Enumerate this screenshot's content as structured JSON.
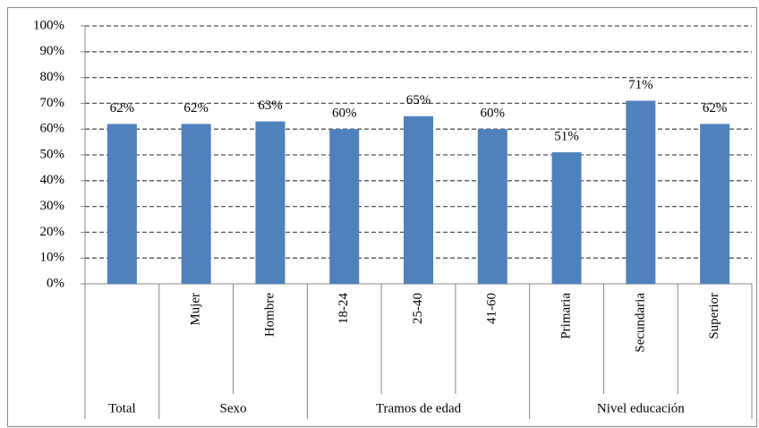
{
  "chart_data": {
    "type": "bar",
    "categories": [
      null,
      "Mujer",
      "Hombre",
      "18-24",
      "25-40",
      "41-60",
      "Primaria",
      "Secundaria",
      "Superior"
    ],
    "groups": [
      {
        "label": "Total",
        "size": 1
      },
      {
        "label": "Sexo",
        "size": 2
      },
      {
        "label": "Tramos de edad",
        "size": 3
      },
      {
        "label": "Nivel educación",
        "size": 3
      }
    ],
    "values": [
      62,
      62,
      63,
      60,
      65,
      60,
      51,
      71,
      62
    ],
    "value_labels": [
      "62%",
      "62%",
      "63%",
      "60%",
      "65%",
      "60%",
      "51%",
      "71%",
      "62%"
    ],
    "color": "#4f81bd",
    "ylim": [
      0,
      100
    ],
    "yticks": [
      {
        "value": 0,
        "label": "0%"
      },
      {
        "value": 10,
        "label": "10%"
      },
      {
        "value": 20,
        "label": "20%"
      },
      {
        "value": 30,
        "label": "30%"
      },
      {
        "value": 40,
        "label": "40%"
      },
      {
        "value": 50,
        "label": "50%"
      },
      {
        "value": 60,
        "label": "60%"
      },
      {
        "value": 70,
        "label": "70%"
      },
      {
        "value": 80,
        "label": "80%"
      },
      {
        "value": 90,
        "label": "90%"
      },
      {
        "value": 100,
        "label": "100%"
      }
    ],
    "grid": true
  }
}
